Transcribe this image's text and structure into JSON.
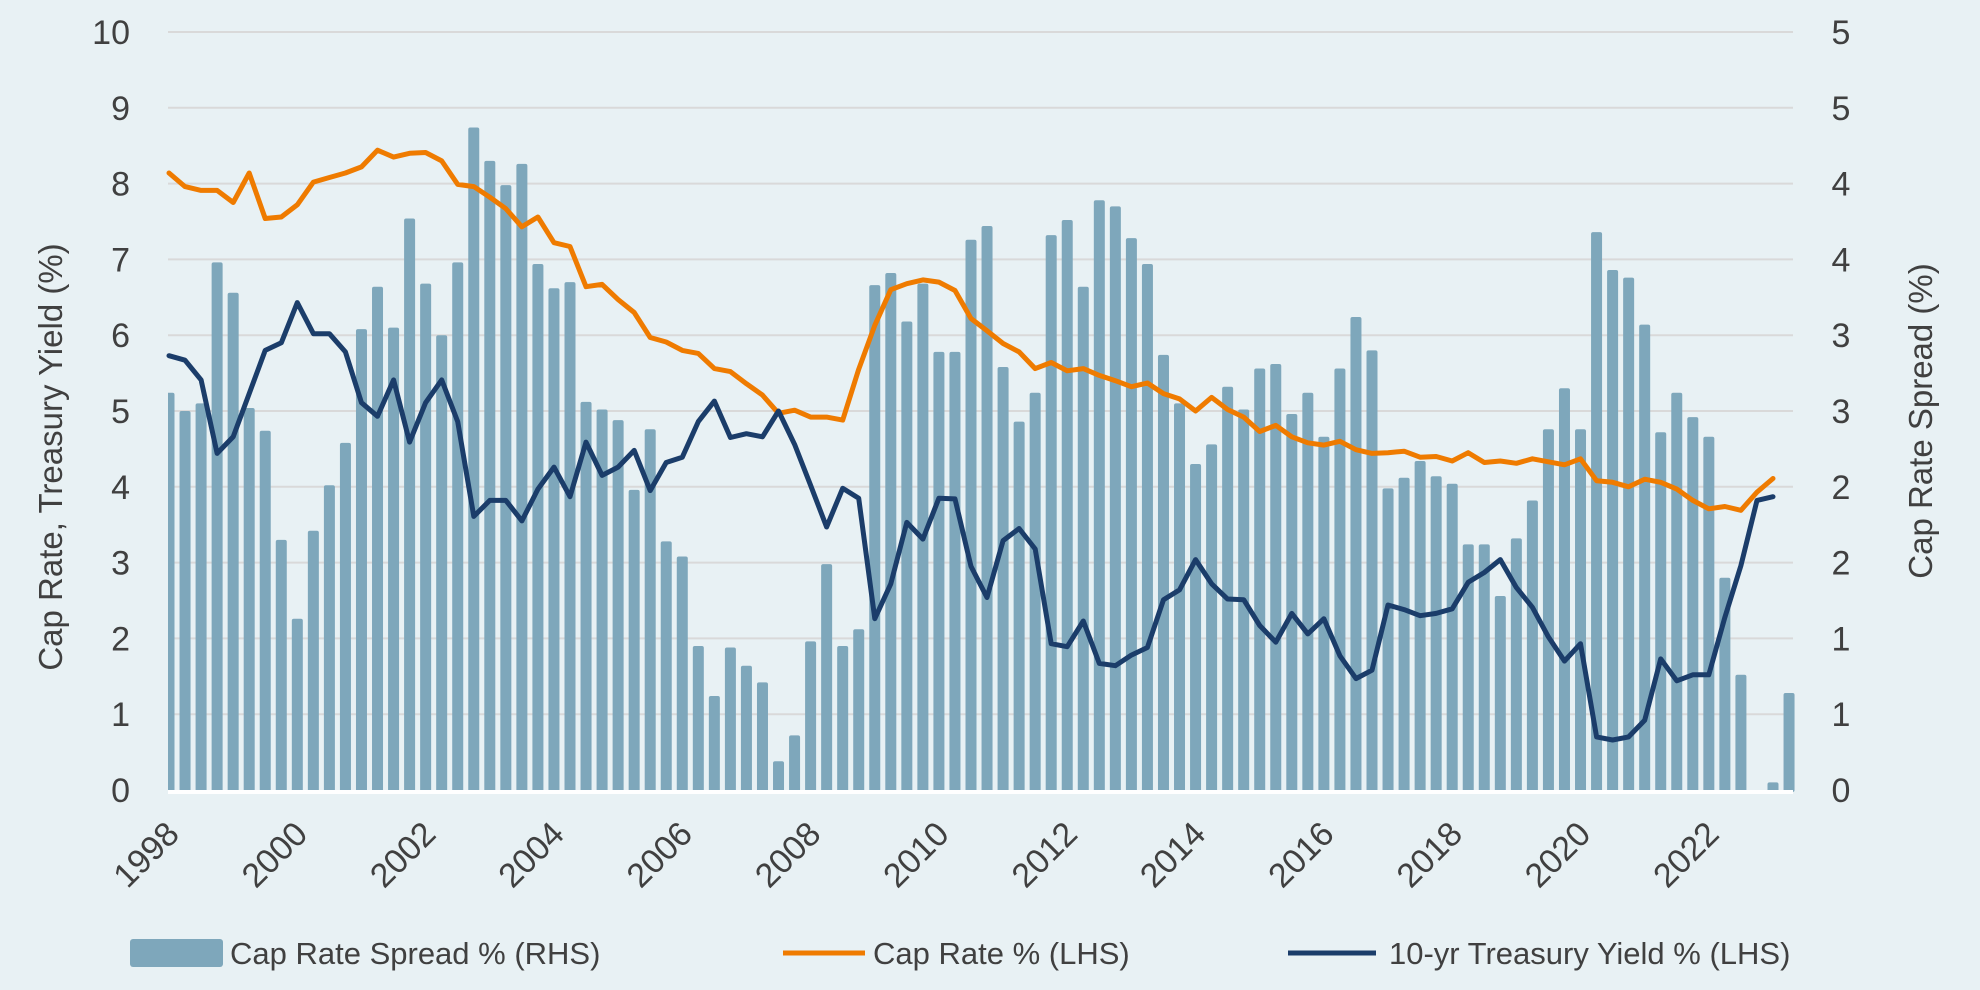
{
  "chart_data": {
    "type": "bar+line",
    "x": [
      "1998Q1",
      "1998Q2",
      "1998Q3",
      "1998Q4",
      "1999Q1",
      "1999Q2",
      "1999Q3",
      "1999Q4",
      "2000Q1",
      "2000Q2",
      "2000Q3",
      "2000Q4",
      "2001Q1",
      "2001Q2",
      "2001Q3",
      "2001Q4",
      "2002Q1",
      "2002Q2",
      "2002Q3",
      "2002Q4",
      "2003Q1",
      "2003Q2",
      "2003Q3",
      "2003Q4",
      "2004Q1",
      "2004Q2",
      "2004Q3",
      "2004Q4",
      "2005Q1",
      "2005Q2",
      "2005Q3",
      "2005Q4",
      "2006Q1",
      "2006Q2",
      "2006Q3",
      "2006Q4",
      "2007Q1",
      "2007Q2",
      "2007Q3",
      "2007Q4",
      "2008Q1",
      "2008Q2",
      "2008Q3",
      "2008Q4",
      "2009Q1",
      "2009Q2",
      "2009Q3",
      "2009Q4",
      "2010Q1",
      "2010Q2",
      "2010Q3",
      "2010Q4",
      "2011Q1",
      "2011Q2",
      "2011Q3",
      "2011Q4",
      "2012Q1",
      "2012Q2",
      "2012Q3",
      "2012Q4",
      "2013Q1",
      "2013Q2",
      "2013Q3",
      "2013Q4",
      "2014Q1",
      "2014Q2",
      "2014Q3",
      "2014Q4",
      "2015Q1",
      "2015Q2",
      "2015Q3",
      "2015Q4",
      "2016Q1",
      "2016Q2",
      "2016Q3",
      "2016Q4",
      "2017Q1",
      "2017Q2",
      "2017Q3",
      "2017Q4",
      "2018Q1",
      "2018Q2",
      "2018Q3",
      "2018Q4",
      "2019Q1",
      "2019Q2",
      "2019Q3",
      "2019Q4",
      "2020Q1",
      "2020Q2",
      "2020Q3",
      "2020Q4",
      "2021Q1",
      "2021Q2",
      "2021Q3",
      "2021Q4",
      "2022Q1",
      "2022Q2",
      "2022Q3",
      "2022Q4",
      "2023Q1",
      "2023Q2"
    ],
    "x_tick_labels": [
      "1998",
      "2000",
      "2002",
      "2004",
      "2006",
      "2008",
      "2010",
      "2012",
      "2014",
      "2016",
      "2018",
      "2020",
      "2022"
    ],
    "y_left": {
      "label": "Cap Rate, Treasury Yield (%)",
      "lim": [
        0,
        10
      ],
      "tick_labels": [
        "0",
        "1",
        "2",
        "3",
        "4",
        "5",
        "6",
        "7",
        "8",
        "9",
        "10"
      ]
    },
    "y_right": {
      "label": "Cap Rate Spread (%)",
      "lim": [
        0,
        5
      ],
      "tick_labels": [
        "0",
        "1",
        "1",
        "2",
        "2",
        "3",
        "3",
        "4",
        "4",
        "5",
        "5"
      ]
    },
    "grid": true,
    "legend_position": "bottom",
    "series": [
      {
        "name": "Cap Rate Spread % (RHS)",
        "type": "bar",
        "axis": "right",
        "color": "#7ea7bb",
        "values": [
          2.62,
          2.5,
          2.55,
          3.48,
          3.28,
          2.52,
          2.37,
          1.65,
          1.13,
          1.71,
          2.01,
          2.29,
          3.04,
          3.32,
          3.05,
          3.77,
          3.34,
          3.0,
          3.48,
          4.37,
          4.15,
          3.99,
          4.13,
          3.47,
          3.31,
          3.35,
          2.56,
          2.51,
          2.44,
          1.98,
          2.38,
          1.64,
          1.54,
          0.95,
          0.62,
          0.94,
          0.82,
          0.71,
          0.19,
          0.36,
          0.98,
          1.49,
          0.95,
          1.06,
          3.33,
          3.41,
          3.09,
          3.34,
          2.89,
          2.89,
          3.63,
          3.72,
          2.79,
          2.43,
          2.62,
          3.66,
          3.76,
          3.32,
          3.89,
          3.85,
          3.64,
          3.47,
          2.87,
          2.55,
          2.15,
          2.28,
          2.66,
          2.51,
          2.78,
          2.81,
          2.48,
          2.62,
          2.33,
          2.78,
          3.12,
          2.9,
          1.99,
          2.06,
          2.17,
          2.07,
          2.02,
          1.62,
          1.62,
          1.28,
          1.66,
          1.91,
          2.38,
          2.65,
          2.38,
          3.68,
          3.43,
          3.38,
          3.07,
          2.36,
          2.62,
          2.46,
          2.33,
          1.4,
          0.76,
          0,
          0.05,
          0.64
        ]
      },
      {
        "name": "Cap Rate % (LHS)",
        "type": "line",
        "axis": "left",
        "color": "#ef7b00",
        "values": [
          8.14,
          7.96,
          7.91,
          7.91,
          7.75,
          8.14,
          7.54,
          7.56,
          7.72,
          8.02,
          8.08,
          8.14,
          8.22,
          8.44,
          8.35,
          8.4,
          8.41,
          8.3,
          7.99,
          7.96,
          7.82,
          7.67,
          7.43,
          7.56,
          7.22,
          7.17,
          6.64,
          6.67,
          6.47,
          6.3,
          5.97,
          5.91,
          5.8,
          5.76,
          5.56,
          5.52,
          5.36,
          5.21,
          4.97,
          5.01,
          4.92,
          4.92,
          4.88,
          5.55,
          6.13,
          6.6,
          6.68,
          6.73,
          6.7,
          6.59,
          6.22,
          6.06,
          5.89,
          5.78,
          5.56,
          5.64,
          5.53,
          5.56,
          5.47,
          5.4,
          5.32,
          5.37,
          5.23,
          5.16,
          5.0,
          5.18,
          5.02,
          4.92,
          4.73,
          4.81,
          4.66,
          4.58,
          4.55,
          4.6,
          4.49,
          4.44,
          4.45,
          4.47,
          4.39,
          4.4,
          4.34,
          4.45,
          4.32,
          4.34,
          4.31,
          4.37,
          4.33,
          4.29,
          4.37,
          4.08,
          4.06,
          4.0,
          4.1,
          4.06,
          3.97,
          3.82,
          3.71,
          3.74,
          3.69,
          3.93,
          4.11,
          null
        ]
      },
      {
        "name": "10-yr Treasury Yield % (LHS)",
        "type": "line",
        "axis": "left",
        "color": "#1b3d6a",
        "values": [
          5.73,
          5.67,
          5.41,
          4.44,
          4.66,
          5.23,
          5.8,
          5.9,
          6.43,
          6.02,
          6.02,
          5.78,
          5.11,
          4.93,
          5.41,
          4.59,
          5.11,
          5.41,
          4.86,
          3.61,
          3.82,
          3.82,
          3.55,
          3.97,
          4.26,
          3.87,
          4.59,
          4.15,
          4.26,
          4.48,
          3.95,
          4.32,
          4.39,
          4.86,
          5.13,
          4.65,
          4.7,
          4.66,
          5.0,
          4.56,
          4.02,
          3.47,
          3.98,
          3.85,
          2.26,
          2.72,
          3.53,
          3.31,
          3.85,
          3.84,
          2.95,
          2.54,
          3.29,
          3.45,
          3.18,
          1.93,
          1.89,
          2.23,
          1.67,
          1.64,
          1.78,
          1.88,
          2.51,
          2.64,
          3.04,
          2.72,
          2.52,
          2.51,
          2.17,
          1.95,
          2.33,
          2.06,
          2.26,
          1.77,
          1.47,
          1.58,
          2.44,
          2.38,
          2.3,
          2.33,
          2.39,
          2.74,
          2.87,
          3.04,
          2.67,
          2.41,
          2.02,
          1.7,
          1.93,
          0.7,
          0.66,
          0.7,
          0.92,
          1.73,
          1.44,
          1.52,
          1.52,
          2.28,
          2.96,
          3.82,
          3.87,
          null
        ]
      }
    ]
  }
}
